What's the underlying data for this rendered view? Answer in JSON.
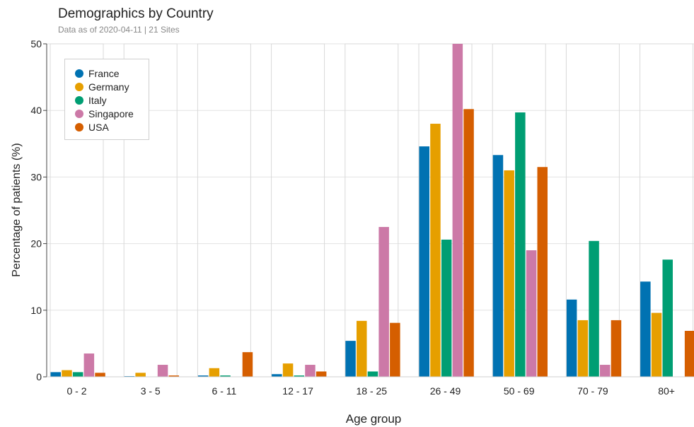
{
  "chart_data": {
    "type": "bar",
    "title": "Demographics by Country",
    "subtitle": "Data as of 2020-04-11 | 21 Sites",
    "xlabel": "Age group",
    "ylabel": "Percentage of patients (%)",
    "ylim": [
      0,
      50
    ],
    "yticks": [
      "0",
      "10",
      "20",
      "30",
      "40",
      "50"
    ],
    "grid": true,
    "legend_position": "top-left",
    "categories": [
      "0 - 2",
      "3 - 5",
      "6 - 11",
      "12 - 17",
      "18 - 25",
      "26 - 49",
      "50 - 69",
      "70 - 79",
      "80+"
    ],
    "series": [
      {
        "name": "France",
        "color": "#0072b2",
        "values": [
          0.7,
          0.1,
          0.2,
          0.4,
          5.4,
          34.6,
          33.3,
          11.6,
          14.3
        ]
      },
      {
        "name": "Germany",
        "color": "#e69f00",
        "values": [
          1.0,
          0.6,
          1.3,
          2.0,
          8.4,
          38.0,
          31.0,
          8.5,
          9.6
        ]
      },
      {
        "name": "Italy",
        "color": "#009e73",
        "values": [
          0.7,
          0.0,
          0.2,
          0.2,
          0.8,
          20.6,
          39.7,
          20.4,
          17.6
        ]
      },
      {
        "name": "Singapore",
        "color": "#cc79a7",
        "values": [
          3.5,
          1.8,
          0.0,
          1.8,
          22.5,
          50.0,
          19.0,
          1.8,
          0.0
        ]
      },
      {
        "name": "USA",
        "color": "#d55e00",
        "values": [
          0.6,
          0.2,
          3.7,
          0.8,
          8.1,
          40.2,
          31.5,
          8.5,
          6.9
        ]
      }
    ]
  }
}
